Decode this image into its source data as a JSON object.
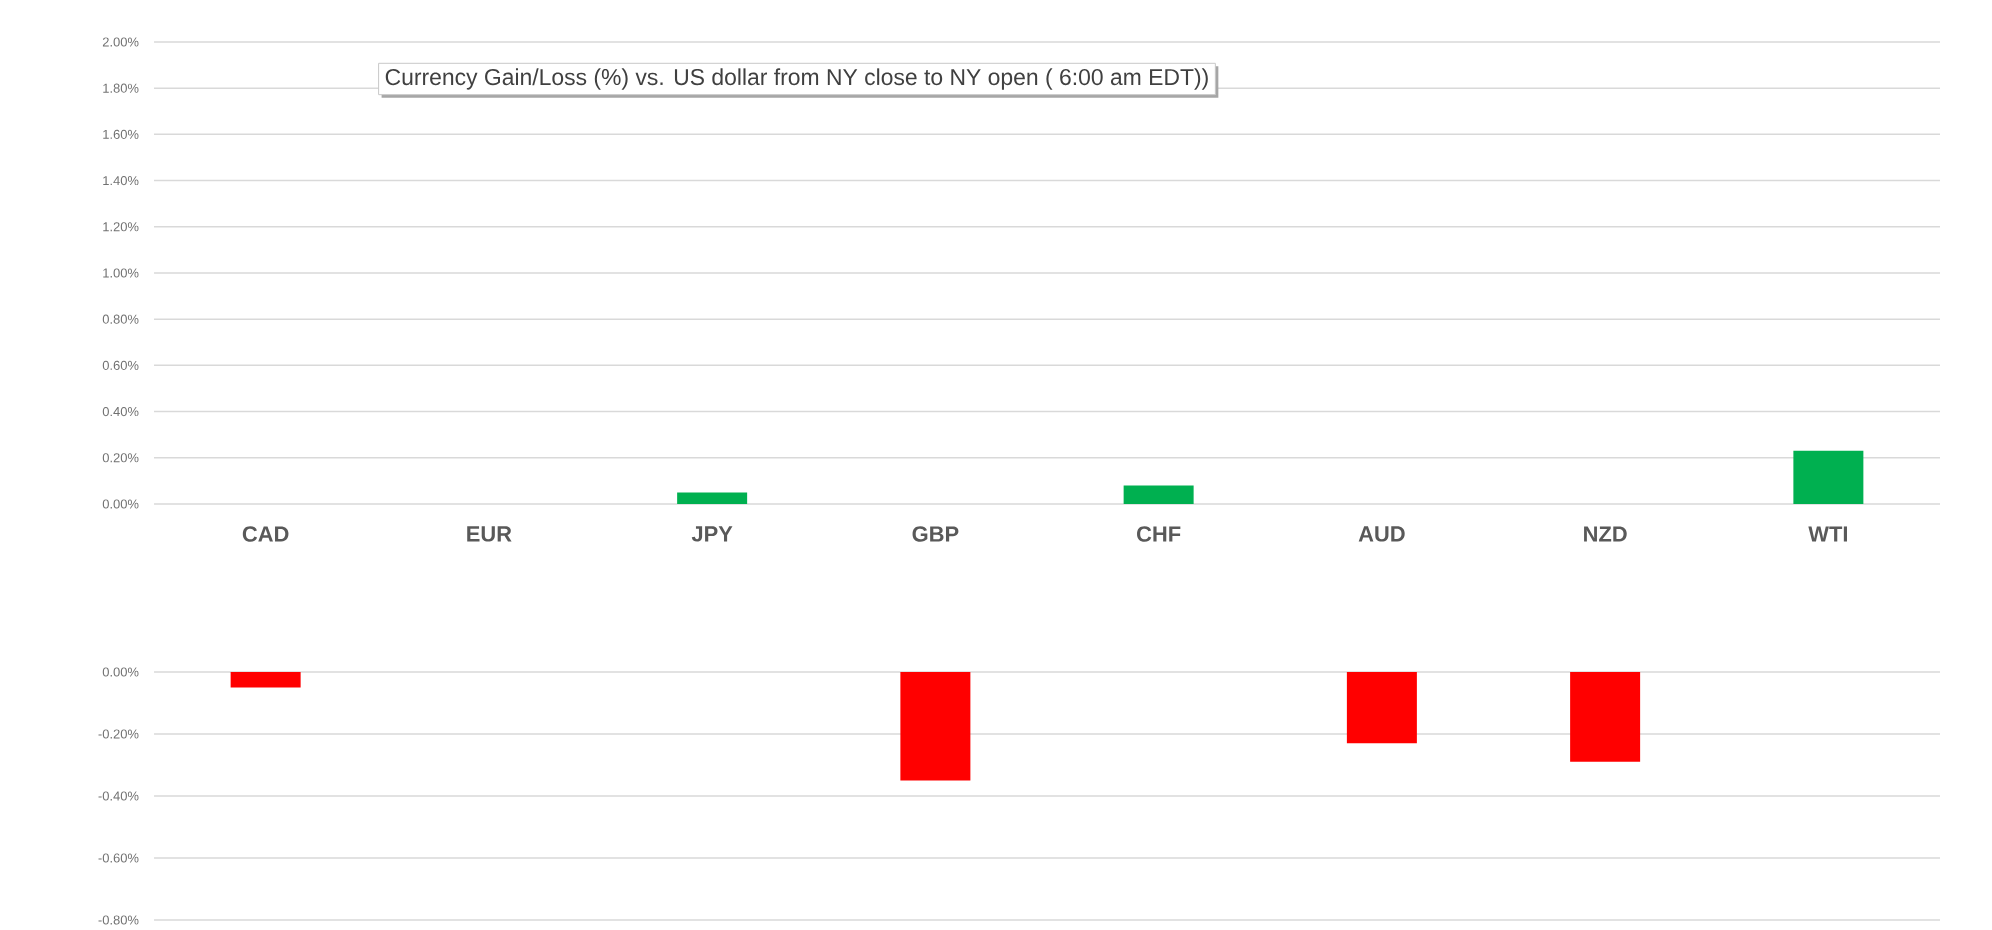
{
  "chart_data": [
    {
      "type": "bar",
      "title": "Currency Gain/Loss (%) vs. US dollar from NY close to NY open ( 6:00 am EDT))",
      "categories": [
        "CAD",
        "EUR",
        "JPY",
        "GBP",
        "CHF",
        "AUD",
        "NZD",
        "WTI"
      ],
      "values": [
        null,
        null,
        0.05,
        null,
        0.08,
        null,
        null,
        0.23
      ],
      "color": "#00b050",
      "ylim": [
        0,
        2
      ],
      "yticks": [
        {
          "value": 0,
          "label": "0.00%"
        },
        {
          "value": 0.2,
          "label": "0.20%"
        },
        {
          "value": 0.4,
          "label": "0.40%"
        },
        {
          "value": 0.6,
          "label": "0.60%"
        },
        {
          "value": 0.8,
          "label": "0.80%"
        },
        {
          "value": 1.0,
          "label": "1.00%"
        },
        {
          "value": 1.2,
          "label": "1.20%"
        },
        {
          "value": 1.4,
          "label": "1.40%"
        },
        {
          "value": 1.6,
          "label": "1.60%"
        },
        {
          "value": 1.8,
          "label": "1.80%"
        },
        {
          "value": 2.0,
          "label": "2.00%"
        }
      ],
      "grid": "y"
    },
    {
      "type": "bar",
      "categories": [
        null,
        null,
        null,
        null,
        null,
        null,
        null,
        null
      ],
      "values": [
        -0.05,
        null,
        null,
        -0.35,
        null,
        -0.23,
        -0.29,
        null
      ],
      "color": "#ff0000",
      "ylim": [
        -0.8,
        0
      ],
      "yticks": [
        {
          "value": 0,
          "label": "0.00%"
        },
        {
          "value": -0.2,
          "label": "-0.20%"
        },
        {
          "value": -0.4,
          "label": "-0.40%"
        },
        {
          "value": -0.6,
          "label": "-0.60%"
        },
        {
          "value": -0.8,
          "label": "-0.80%"
        }
      ],
      "grid": "y"
    }
  ]
}
